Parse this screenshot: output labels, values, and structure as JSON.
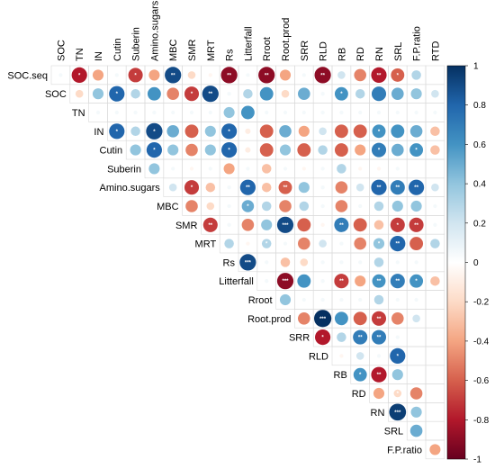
{
  "chart_data": {
    "type": "heatmap",
    "variables": [
      "SOC.seq",
      "SOC",
      "TN",
      "IN",
      "Cutin",
      "Suberin",
      "Amino.sugars",
      "MBC",
      "SMR",
      "MRT",
      "Rs",
      "Litterfall",
      "Rroot",
      "Root.prod",
      "SRR",
      "RLD",
      "RB",
      "RD",
      "RN",
      "SRL",
      "F.P.ratio",
      "RTD"
    ],
    "row_labels": [
      "SOC.seq",
      "SOC",
      "TN",
      "IN",
      "Cutin",
      "Suberin",
      "Amino.sugars",
      "MBC",
      "SMR",
      "MRT",
      "Rs",
      "Litterfall",
      "Rroot",
      "Root.prod",
      "SRR",
      "RLD",
      "RB",
      "RD",
      "RN",
      "SRL",
      "F.P.ratio"
    ],
    "column_labels": [
      "SOC",
      "TN",
      "IN",
      "Cutin",
      "Suberin",
      "Amino.sugars",
      "MBC",
      "SMR",
      "MRT",
      "Rs",
      "Litterfall",
      "Rroot",
      "Root.prod",
      "SRR",
      "RLD",
      "RB",
      "RD",
      "RN",
      "SRL",
      "F.P.ratio",
      "RTD"
    ],
    "correlations": [
      [
        0.05,
        -0.8,
        -0.4,
        0.05,
        -0.7,
        -0.4,
        0.9,
        -0.2,
        -0.05,
        -0.9,
        0.05,
        -0.9,
        -0.4,
        0.05,
        -0.9,
        0.2,
        -0.5,
        -0.8,
        -0.6,
        0.3
      ],
      [
        -0.2,
        0.4,
        0.8,
        0.3,
        0.6,
        -0.5,
        -0.7,
        0.9,
        0.05,
        0.3,
        0.6,
        -0.2,
        0.5,
        0.05,
        0.6,
        0.3,
        0.7,
        0.5,
        0.4,
        0.2
      ],
      [
        0.05,
        0.05,
        0.05,
        0.05,
        0.05,
        0.05,
        0.05,
        0.4,
        0.6,
        0.05,
        0.05,
        0.05,
        0.05,
        0.05,
        0.05,
        0.05,
        0.05,
        0.05,
        0.05
      ],
      [
        0.8,
        0.3,
        0.9,
        0.5,
        -0.6,
        0.4,
        0.8,
        -0.1,
        -0.6,
        0.5,
        -0.4,
        0.2,
        -0.6,
        -0.6,
        0.6,
        0.6,
        0.5,
        -0.3
      ],
      [
        0.4,
        0.8,
        0.4,
        -0.5,
        0.4,
        0.8,
        -0.1,
        -0.6,
        0.4,
        -0.6,
        0.3,
        -0.6,
        -0.4,
        0.7,
        0.5,
        0.6,
        -0.3
      ],
      [
        0.4,
        0.05,
        -0.05,
        0.05,
        -0.4,
        0.05,
        -0.3,
        0.05,
        -0.05,
        0.05,
        0.3,
        -0.05,
        -0.05,
        0.05
      ],
      [
        0.2,
        -0.7,
        -0.3,
        0.05,
        0.8,
        -0.3,
        -0.6,
        0.4,
        0.05,
        -0.5,
        0.2,
        0.8,
        0.7,
        0.8,
        0.2
      ],
      [
        -0.5,
        -0.2,
        0.05,
        0.5,
        0.3,
        -0.5,
        0.3,
        0.05,
        -0.5,
        0.05,
        0.3,
        0.4,
        0.4,
        0.05
      ],
      [
        -0.7,
        0.05,
        -0.5,
        0.4,
        0.9,
        -0.6,
        -0.05,
        0.7,
        -0.6,
        -0.3,
        -0.7,
        -0.7,
        0.05
      ],
      [
        0.3,
        -0.05,
        0.3,
        0.05,
        -0.5,
        0.2,
        0.05,
        -0.5,
        0.4,
        0.8,
        -0.6,
        0.3
      ],
      [
        0.9,
        0.05,
        -0.3,
        -0.2,
        0.05,
        0.05,
        0.05,
        0.3,
        0.05,
        0.05
      ],
      [
        0.05,
        -0.9,
        0.6,
        0.05,
        -0.7,
        -0.4,
        0.6,
        0.7,
        0.6,
        -0.3
      ],
      [
        0.4,
        0.05,
        0.05,
        0.05,
        0.05,
        0.3,
        0.05,
        0.05
      ],
      [
        -0.5,
        1.0,
        0.6,
        -0.6,
        -0.7,
        -0.5,
        0.2
      ],
      [
        -0.8,
        0.3,
        0.7,
        0.7,
        0.05
      ],
      [
        -0.05,
        0.2,
        0.05,
        0.8
      ],
      [
        0.6,
        -0.8,
        0.4
      ],
      [
        -0.4,
        -0.2,
        -0.5
      ],
      [
        0.95,
        0.4
      ],
      [
        0.5
      ],
      [
        -0.4
      ]
    ],
    "significance": [
      [
        "",
        "*",
        "",
        "",
        "*",
        "",
        "**",
        "",
        "",
        "**",
        "",
        "**",
        "",
        "",
        "**",
        "",
        "",
        "**",
        "*",
        ""
      ],
      [
        "",
        "",
        "*",
        "",
        "",
        "",
        "*",
        "**",
        "",
        "",
        "",
        "",
        "",
        "",
        "*",
        "",
        "",
        "",
        "",
        ""
      ],
      [
        "",
        "",
        "",
        "",
        "",
        "",
        "",
        "",
        "",
        "",
        "",
        "",
        "",
        "",
        "",
        "",
        "",
        "",
        ""
      ],
      [
        "*",
        "",
        "*",
        "",
        "",
        "",
        "*",
        "",
        "",
        "",
        "",
        "",
        "",
        "",
        "*",
        "",
        "",
        ""
      ],
      [
        "",
        "*",
        "",
        "",
        "",
        "*",
        "",
        "",
        "",
        "",
        "",
        "",
        "",
        "*",
        "",
        "*",
        ""
      ],
      [
        "",
        "",
        "",
        "",
        "",
        "",
        "",
        "",
        "",
        "",
        "",
        "",
        "",
        ""
      ],
      [
        "",
        "*",
        "",
        "",
        "**",
        "",
        "**",
        "",
        "",
        "",
        "",
        "**",
        "**",
        "**",
        ""
      ],
      [
        "",
        "",
        "",
        "*",
        "",
        "",
        "",
        "",
        "",
        "",
        "",
        "",
        "",
        ""
      ],
      [
        "**",
        "",
        "",
        "",
        "***",
        "",
        "",
        "**",
        "",
        "",
        "*",
        "**",
        ""
      ],
      [
        "",
        "",
        "*",
        "",
        "",
        "",
        "",
        "",
        "*",
        "**",
        "",
        ""
      ],
      [
        "***",
        "",
        "",
        "",
        "",
        "",
        "",
        "",
        "",
        ""
      ],
      [
        "",
        "***",
        "",
        "",
        "**",
        "",
        "**",
        "**",
        "*",
        ""
      ],
      [
        "",
        "",
        "",
        "",
        "",
        "",
        "",
        ""
      ],
      [
        "",
        "***",
        "",
        "",
        "**",
        "",
        ""
      ],
      [
        "*",
        "",
        "**",
        "**",
        ""
      ],
      [
        "",
        "",
        "",
        "*"
      ],
      [
        "*",
        "**",
        ""
      ],
      [
        "",
        "*",
        ""
      ],
      [
        "***",
        ""
      ],
      [
        ""
      ],
      [
        ""
      ]
    ],
    "colorbar": {
      "ticks": [
        "1",
        "0.8",
        "0.6",
        "0.4",
        "0.2",
        "0",
        "-0.2",
        "-0.4",
        "-0.6",
        "-0.8",
        "-1"
      ],
      "range": [
        -1,
        1
      ],
      "colors": {
        "neg": "#67001F",
        "mid_neg": "#D6604D",
        "zero": "#FFFFFF",
        "mid_pos": "#4393C3",
        "pos": "#053061"
      }
    }
  }
}
